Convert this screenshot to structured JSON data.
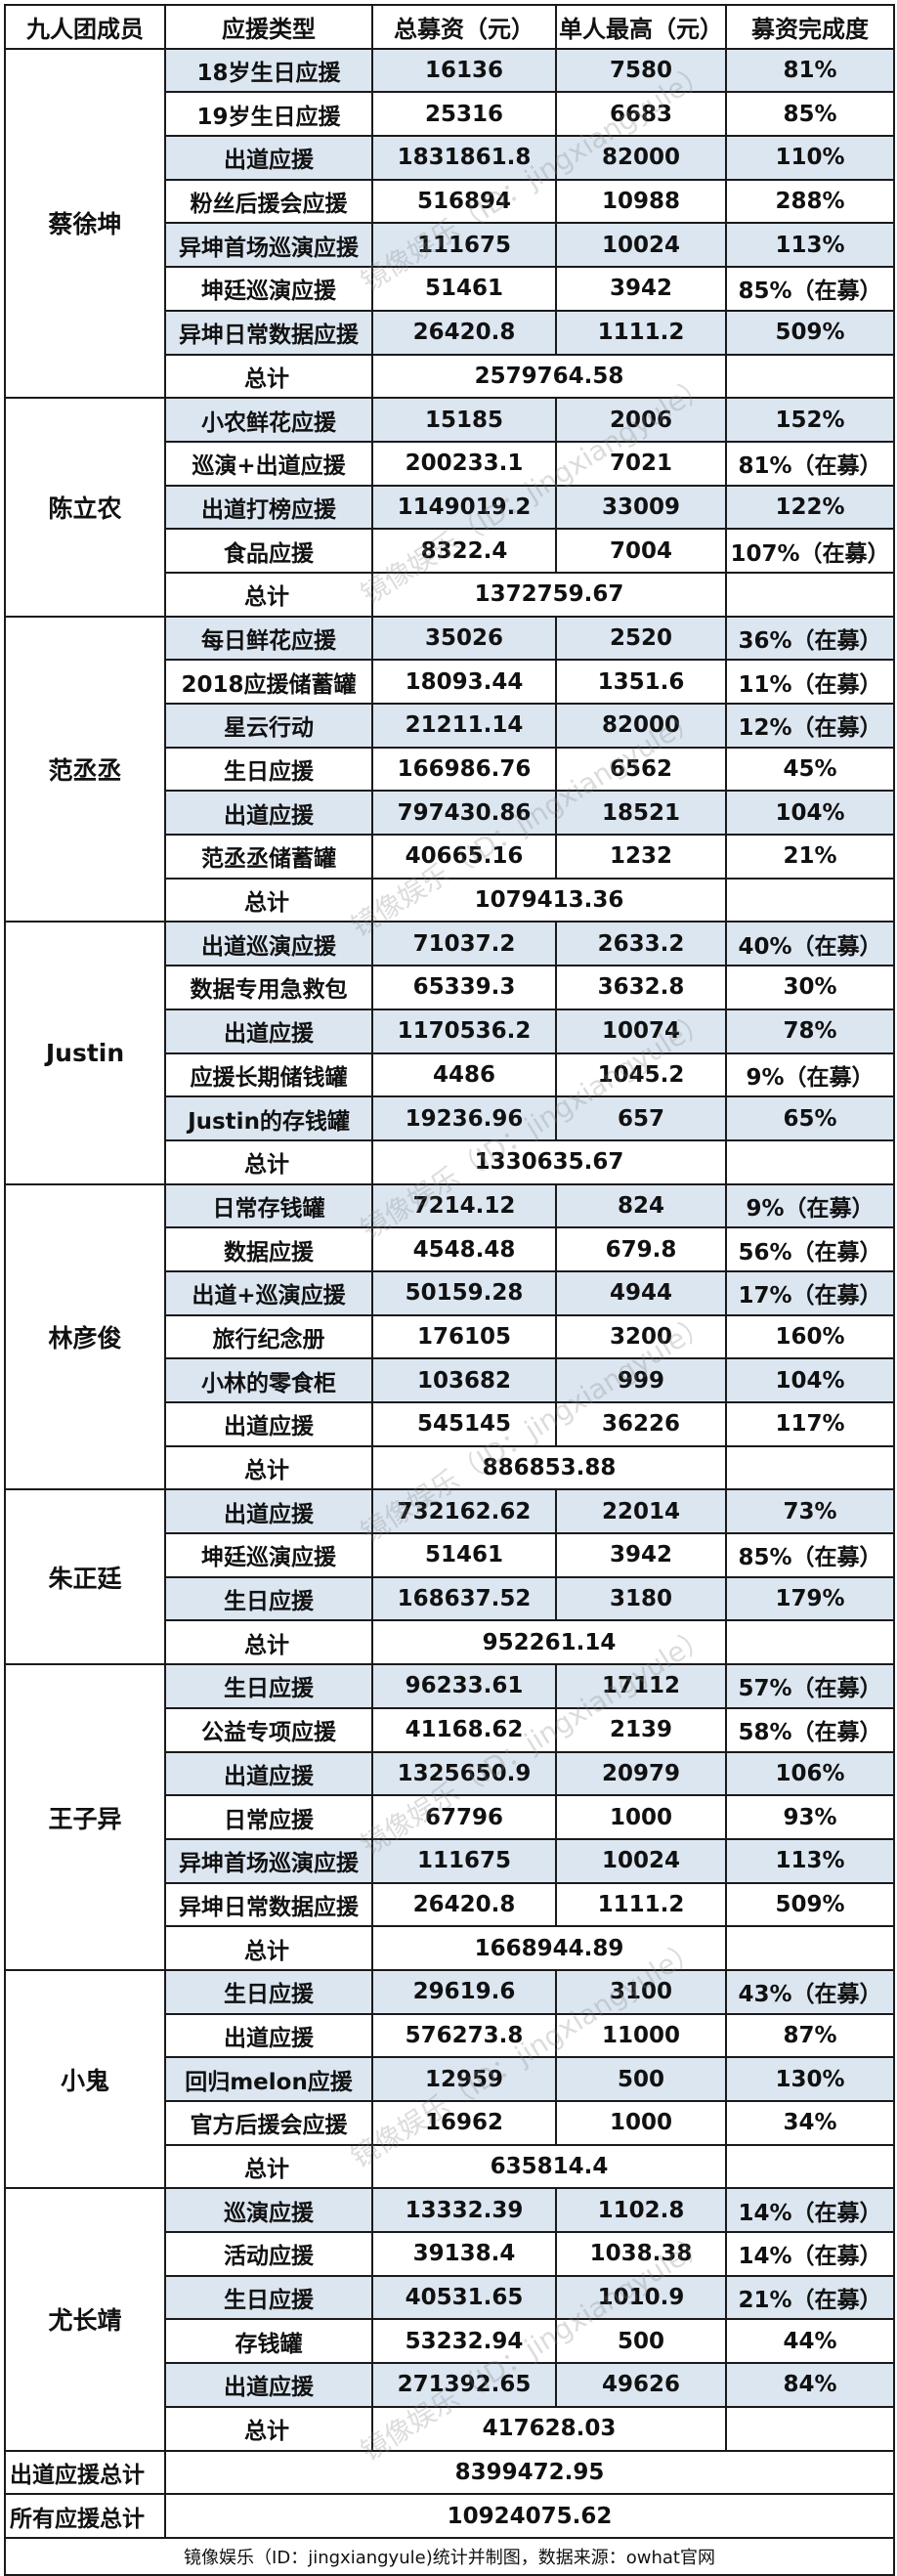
{
  "header": {
    "member": "九人团成员",
    "type": "应援类型",
    "total": "总募资（元）",
    "max": "单人最高（元）",
    "completion": "募资完成度"
  },
  "total_label": "总计",
  "groups": [
    {
      "member": "蔡徐坤",
      "rows": [
        [
          "18岁生日应援",
          "16136",
          "7580",
          "81%"
        ],
        [
          "19岁生日应援",
          "25316",
          "6683",
          "85%"
        ],
        [
          "出道应援",
          "1831861.8",
          "82000",
          "110%"
        ],
        [
          "粉丝后援会应援",
          "516894",
          "10988",
          "288%"
        ],
        [
          "异坤首场巡演应援",
          "111675",
          "10024",
          "113%"
        ],
        [
          "坤廷巡演应援",
          "51461",
          "3942",
          "85%（在募）"
        ],
        [
          "异坤日常数据应援",
          "26420.8",
          "1111.2",
          "509%"
        ]
      ],
      "total": "2579764.58"
    },
    {
      "member": "陈立农",
      "rows": [
        [
          "小农鲜花应援",
          "15185",
          "2006",
          "152%"
        ],
        [
          "巡演+出道应援",
          "200233.1",
          "7021",
          "81%（在募）"
        ],
        [
          "出道打榜应援",
          "1149019.2",
          "33009",
          "122%"
        ],
        [
          "食品应援",
          "8322.4",
          "7004",
          "107%（在募）"
        ]
      ],
      "total": "1372759.67"
    },
    {
      "member": "范丞丞",
      "rows": [
        [
          "每日鲜花应援",
          "35026",
          "2520",
          "36%（在募）"
        ],
        [
          "2018应援储蓄罐",
          "18093.44",
          "1351.6",
          "11%（在募）"
        ],
        [
          "星云行动",
          "21211.14",
          "82000",
          "12%（在募）"
        ],
        [
          "生日应援",
          "166986.76",
          "6562",
          "45%"
        ],
        [
          "出道应援",
          "797430.86",
          "18521",
          "104%"
        ],
        [
          "范丞丞储蓄罐",
          "40665.16",
          "1232",
          "21%"
        ]
      ],
      "total": "1079413.36"
    },
    {
      "member": "Justin",
      "rows": [
        [
          "出道巡演应援",
          "71037.2",
          "2633.2",
          "40%（在募）"
        ],
        [
          "数据专用急救包",
          "65339.3",
          "3632.8",
          "30%"
        ],
        [
          "出道应援",
          "1170536.2",
          "10074",
          "78%"
        ],
        [
          "应援长期储钱罐",
          "4486",
          "1045.2",
          "9%（在募）"
        ],
        [
          "Justin的存钱罐",
          "19236.96",
          "657",
          "65%"
        ]
      ],
      "total": "1330635.67"
    },
    {
      "member": "林彦俊",
      "rows": [
        [
          "日常存钱罐",
          "7214.12",
          "824",
          "9%（在募）"
        ],
        [
          "数据应援",
          "4548.48",
          "679.8",
          "56%（在募）"
        ],
        [
          "出道+巡演应援",
          "50159.28",
          "4944",
          "17%（在募）"
        ],
        [
          "旅行纪念册",
          "176105",
          "3200",
          "160%"
        ],
        [
          "小林的零食柜",
          "103682",
          "999",
          "104%"
        ],
        [
          "出道应援",
          "545145",
          "36226",
          "117%"
        ]
      ],
      "total": "886853.88"
    },
    {
      "member": "朱正廷",
      "rows": [
        [
          "出道应援",
          "732162.62",
          "22014",
          "73%"
        ],
        [
          "坤廷巡演应援",
          "51461",
          "3942",
          "85%（在募）"
        ],
        [
          "生日应援",
          "168637.52",
          "3180",
          "179%"
        ]
      ],
      "total": "952261.14"
    },
    {
      "member": "王子异",
      "rows": [
        [
          "生日应援",
          "96233.61",
          "17112",
          "57%（在募）"
        ],
        [
          "公益专项应援",
          "41168.62",
          "2139",
          "58%（在募）"
        ],
        [
          "出道应援",
          "1325650.9",
          "20979",
          "106%"
        ],
        [
          "日常应援",
          "67796",
          "1000",
          "93%"
        ],
        [
          "异坤首场巡演应援",
          "111675",
          "10024",
          "113%"
        ],
        [
          "异坤日常数据应援",
          "26420.8",
          "1111.2",
          "509%"
        ]
      ],
      "total": "1668944.89"
    },
    {
      "member": "小鬼",
      "rows": [
        [
          "生日应援",
          "29619.6",
          "3100",
          "43%（在募）"
        ],
        [
          "出道应援",
          "576273.8",
          "11000",
          "87%"
        ],
        [
          "回归melon应援",
          "12959",
          "500",
          "130%"
        ],
        [
          "官方后援会应援",
          "16962",
          "1000",
          "34%"
        ]
      ],
      "total": "635814.4"
    },
    {
      "member": "尤长靖",
      "rows": [
        [
          "巡演应援",
          "13332.39",
          "1102.8",
          "14%（在募）"
        ],
        [
          "活动应援",
          "39138.4",
          "1038.38",
          "14%（在募）"
        ],
        [
          "生日应援",
          "40531.65",
          "1010.9",
          "21%（在募）"
        ],
        [
          "存钱罐",
          "53232.94",
          "500",
          "44%"
        ],
        [
          "出道应援",
          "271392.65",
          "49626",
          "84%"
        ]
      ],
      "total": "417628.03"
    }
  ],
  "grand": [
    {
      "label": "出道应援总计",
      "value": "8399472.95"
    },
    {
      "label": "所有应援总计",
      "value": "10924075.62"
    }
  ],
  "footer": "镜像娱乐（ID：jingxiangyule)统计并制图，数据来源：owhat官网",
  "watermark": "镜像娱乐（ID：jingxiangyule）",
  "colors": {
    "row_shade": "#dce6f1",
    "border": "#1a1a1a"
  }
}
